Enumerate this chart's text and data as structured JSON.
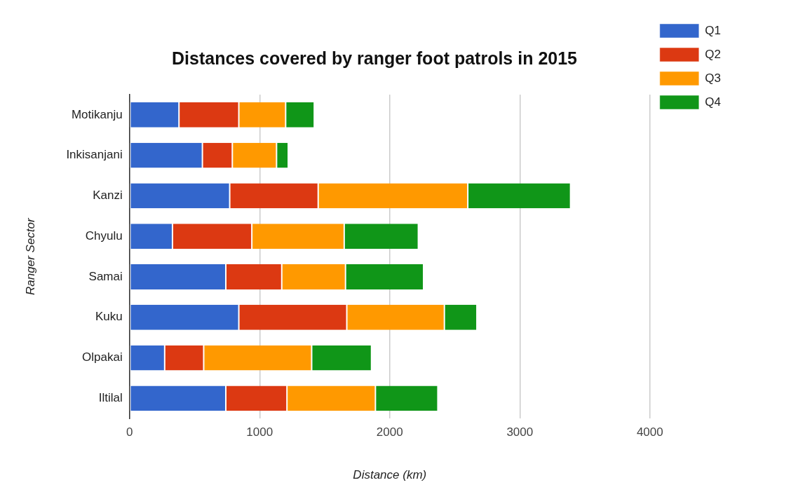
{
  "chart_data": {
    "type": "bar",
    "orientation": "horizontal",
    "stacked": true,
    "title": "Distances covered by ranger foot patrols in 2015",
    "xlabel": "Distance (km)",
    "ylabel": "Ranger Sector",
    "categories": [
      "Motikanju",
      "Inkisanjani",
      "Kanzi",
      "Chyulu",
      "Samai",
      "Kuku",
      "Olpakai",
      "Iltilal"
    ],
    "series": [
      {
        "name": "Q1",
        "color": "#3366cc",
        "values": [
          380,
          560,
          770,
          330,
          740,
          840,
          270,
          740
        ]
      },
      {
        "name": "Q2",
        "color": "#dc3912",
        "values": [
          460,
          230,
          680,
          610,
          430,
          830,
          300,
          470
        ]
      },
      {
        "name": "Q3",
        "color": "#ff9900",
        "values": [
          360,
          340,
          1150,
          710,
          490,
          750,
          830,
          680
        ]
      },
      {
        "name": "Q4",
        "color": "#109618",
        "values": [
          220,
          90,
          790,
          570,
          600,
          250,
          460,
          480
        ]
      }
    ],
    "xlim": [
      0,
      4000
    ],
    "xticks": [
      0,
      1000,
      2000,
      3000,
      4000
    ],
    "grid": "x",
    "legend": "top right"
  }
}
